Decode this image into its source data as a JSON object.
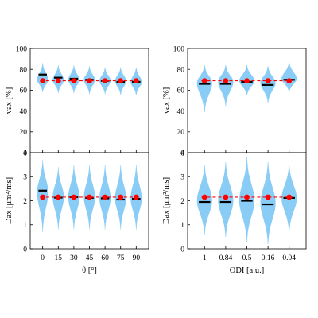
{
  "chart_data": [
    {
      "id": "top-left",
      "type": "violin",
      "ylabel": "vax [%]",
      "xlabel": "",
      "ylim": [
        0,
        100
      ],
      "yticks": [
        "0",
        "20",
        "40",
        "60",
        "80",
        "100"
      ],
      "categories": [
        "0",
        "15",
        "30",
        "45",
        "60",
        "75",
        "90"
      ],
      "show_xticklabels": false,
      "violins": [
        {
          "min": 58,
          "max": 86,
          "center": 70
        },
        {
          "min": 57,
          "max": 84,
          "center": 70
        },
        {
          "min": 57,
          "max": 84,
          "center": 70
        },
        {
          "min": 56,
          "max": 83,
          "center": 70
        },
        {
          "min": 56,
          "max": 82,
          "center": 69
        },
        {
          "min": 55,
          "max": 82,
          "center": 69
        },
        {
          "min": 55,
          "max": 82,
          "center": 68
        }
      ],
      "median": [
        75,
        72,
        71,
        70,
        69,
        68,
        68
      ],
      "ground_truth": [
        69,
        69,
        69,
        69,
        69,
        69,
        69
      ],
      "reference_line": 69,
      "colors": {
        "violin": "#89cdf7",
        "median": "#000000",
        "ground_truth": "#ff0000"
      }
    },
    {
      "id": "top-right",
      "type": "violin",
      "ylabel": "vax [%]",
      "xlabel": "",
      "ylim": [
        0,
        100
      ],
      "yticks": [
        "0",
        "20",
        "40",
        "60",
        "80",
        "100"
      ],
      "categories": [
        "1",
        "0.84",
        "0.5",
        "0.16",
        "0.04"
      ],
      "show_xticklabels": false,
      "violins": [
        {
          "min": 39,
          "max": 84,
          "center": 67
        },
        {
          "min": 45,
          "max": 84,
          "center": 68
        },
        {
          "min": 55,
          "max": 84,
          "center": 69
        },
        {
          "min": 48,
          "max": 83,
          "center": 67
        },
        {
          "min": 58,
          "max": 87,
          "center": 71
        }
      ],
      "median": [
        66,
        66,
        68,
        65,
        70
      ],
      "ground_truth": [
        69,
        69,
        69,
        69,
        69
      ],
      "reference_line": 69,
      "colors": {
        "violin": "#89cdf7",
        "median": "#000000",
        "ground_truth": "#ff0000"
      }
    },
    {
      "id": "bottom-left",
      "type": "violin",
      "ylabel": "Dax [μm²/ms]",
      "xlabel": "θ [°]",
      "ylim": [
        0,
        4
      ],
      "yticks": [
        "0",
        "1",
        "2",
        "3",
        "4"
      ],
      "categories": [
        "0",
        "15",
        "30",
        "45",
        "60",
        "75",
        "90"
      ],
      "show_xticklabels": true,
      "violins": [
        {
          "min": 0.7,
          "max": 3.7,
          "center": 2.35
        },
        {
          "min": 0.8,
          "max": 3.4,
          "center": 2.15
        },
        {
          "min": 0.8,
          "max": 3.5,
          "center": 2.15
        },
        {
          "min": 0.8,
          "max": 3.5,
          "center": 2.15
        },
        {
          "min": 0.8,
          "max": 3.5,
          "center": 2.1
        },
        {
          "min": 0.8,
          "max": 3.5,
          "center": 2.1
        },
        {
          "min": 0.8,
          "max": 3.5,
          "center": 2.1
        }
      ],
      "median": [
        2.42,
        2.13,
        2.15,
        2.12,
        2.1,
        2.05,
        2.08
      ],
      "ground_truth": [
        2.15,
        2.15,
        2.15,
        2.15,
        2.15,
        2.15,
        2.15
      ],
      "reference_line": 2.15,
      "colors": {
        "violin": "#89cdf7",
        "median": "#000000",
        "ground_truth": "#ff0000"
      }
    },
    {
      "id": "bottom-right",
      "type": "violin",
      "ylabel": "Dax [μm²/ms]",
      "xlabel": "ODI [a.u.]",
      "ylim": [
        0,
        4
      ],
      "yticks": [
        "0",
        "1",
        "2",
        "3",
        "4"
      ],
      "categories": [
        "1",
        "0.84",
        "0.5",
        "0.16",
        "0.04"
      ],
      "show_xticklabels": true,
      "violins": [
        {
          "min": 0.6,
          "max": 3.5,
          "center": 2.0
        },
        {
          "min": 0.5,
          "max": 3.6,
          "center": 2.0
        },
        {
          "min": 0.3,
          "max": 3.8,
          "center": 2.0
        },
        {
          "min": 0.2,
          "max": 3.6,
          "center": 1.9
        },
        {
          "min": 0.7,
          "max": 3.5,
          "center": 2.1
        }
      ],
      "median": [
        1.95,
        1.95,
        2.0,
        1.85,
        2.12
      ],
      "ground_truth": [
        2.15,
        2.15,
        2.15,
        2.15,
        2.15
      ],
      "reference_line": 2.15,
      "colors": {
        "violin": "#89cdf7",
        "median": "#000000",
        "ground_truth": "#ff0000"
      }
    }
  ]
}
